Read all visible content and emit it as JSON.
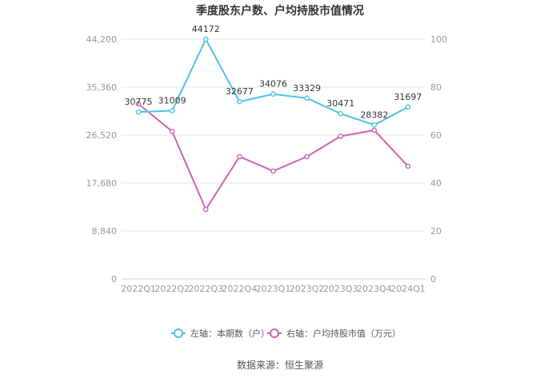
{
  "chart_data": {
    "type": "line",
    "title": "季度股东户数、户均持股市值情况",
    "categories": [
      "2022Q1",
      "2022Q2",
      "2022Q3",
      "2022Q4",
      "2023Q1",
      "2023Q2",
      "2023Q3",
      "2023Q4",
      "2024Q1"
    ],
    "left_axis": {
      "min": 0,
      "max": 44200,
      "ticks": [
        "0",
        "8,840",
        "17,680",
        "26,520",
        "35,360",
        "44,200"
      ]
    },
    "right_axis": {
      "min": 0,
      "max": 100,
      "ticks": [
        "0",
        "20",
        "40",
        "60",
        "80",
        "100"
      ]
    },
    "series": [
      {
        "name": "左轴：本期数（户）",
        "axis": "left",
        "color": "#4fc1e9",
        "values": [
          30775,
          31009,
          44172,
          32677,
          34076,
          33329,
          30471,
          28382,
          31697
        ],
        "labels": [
          "30775",
          "31009",
          "44172",
          "32677",
          "34076",
          "33329",
          "30471",
          "28382",
          "31697"
        ]
      },
      {
        "name": "右轴：户均持股市值（万元）",
        "axis": "right",
        "color": "#d062b0",
        "values": [
          73,
          61.5,
          29,
          51,
          45,
          51,
          59.5,
          62,
          47
        ]
      }
    ],
    "grid": true,
    "legend_position": "bottom"
  },
  "source_text": "数据来源：恒生聚源"
}
